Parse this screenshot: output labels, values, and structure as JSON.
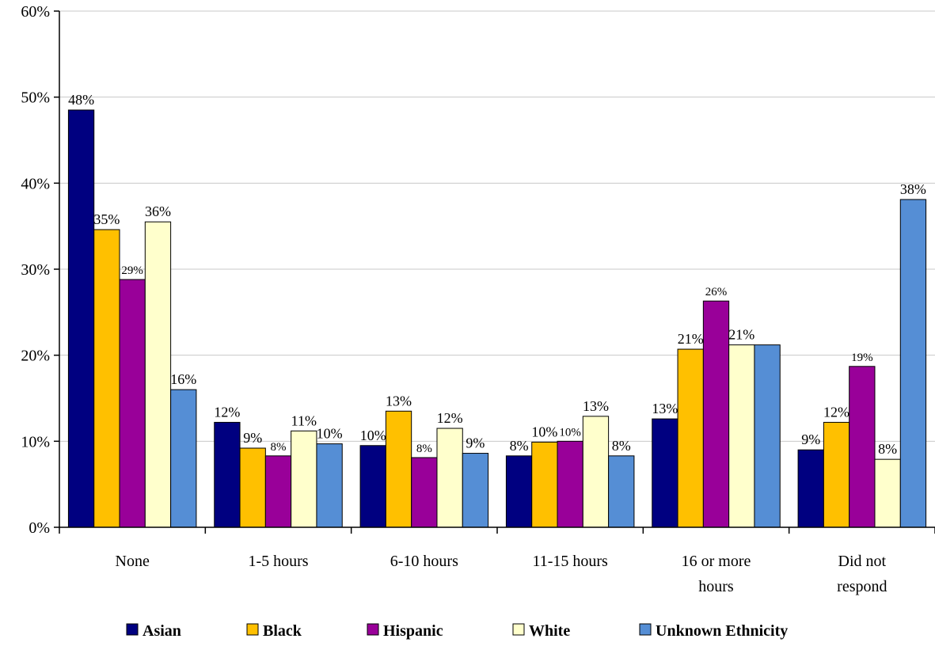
{
  "chart_data": {
    "type": "bar",
    "categories": [
      "None",
      "1-5 hours",
      "6-10 hours",
      "11-15 hours",
      "16 or more hours",
      "Did not respond"
    ],
    "category_lines": [
      [
        "None"
      ],
      [
        "1-5 hours"
      ],
      [
        "6-10 hours"
      ],
      [
        "11-15 hours"
      ],
      [
        "16 or more",
        "hours"
      ],
      [
        "Did not",
        "respond"
      ]
    ],
    "series": [
      {
        "name": "Asian",
        "color": "#000080",
        "values": [
          48.5,
          12.2,
          9.5,
          8.3,
          12.6,
          9.0
        ],
        "labels": [
          "48%",
          "12%",
          "10%",
          "8%",
          "13%",
          "9%"
        ]
      },
      {
        "name": "Black",
        "color": "#FFC000",
        "values": [
          34.6,
          9.2,
          13.5,
          9.9,
          20.7,
          12.2
        ],
        "labels": [
          "35%",
          "9%",
          "13%",
          "10%",
          "21%",
          "12%"
        ]
      },
      {
        "name": "Hispanic",
        "color": "#990099",
        "values": [
          28.8,
          8.3,
          8.1,
          10.0,
          26.3,
          18.7
        ],
        "labels": [
          "29%",
          "8%",
          "8%",
          "10%",
          "26%",
          "19%"
        ]
      },
      {
        "name": "White",
        "color": "#FFFFCC",
        "values": [
          35.5,
          11.2,
          11.5,
          12.9,
          21.2,
          7.9
        ],
        "labels": [
          "36%",
          "11%",
          "12%",
          "13%",
          "21%",
          "8%"
        ]
      },
      {
        "name": "Unknown Ethnicity",
        "color": "#558ED5",
        "values": [
          16.0,
          9.7,
          8.6,
          8.3,
          21.2,
          38.1
        ],
        "labels": [
          "16%",
          "10%",
          "9%",
          "8%",
          "",
          "38%"
        ]
      }
    ],
    "y_ticks": [
      "0%",
      "10%",
      "20%",
      "30%",
      "40%",
      "50%",
      "60%"
    ],
    "ylim": [
      0,
      60
    ],
    "title": "",
    "xlabel": "",
    "ylabel": "",
    "grid": true,
    "legend_position": "bottom"
  }
}
